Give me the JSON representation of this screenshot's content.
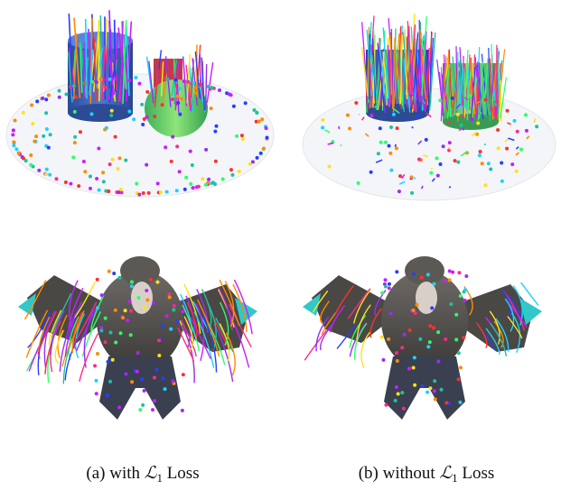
{
  "panels": [
    {
      "prefix": "(a) with",
      "symbol": "ℒ",
      "subscript": "1",
      "suffix": "Loss"
    },
    {
      "prefix": "(b) without",
      "symbol": "ℒ",
      "subscript": "1",
      "suffix": "Loss"
    }
  ]
}
